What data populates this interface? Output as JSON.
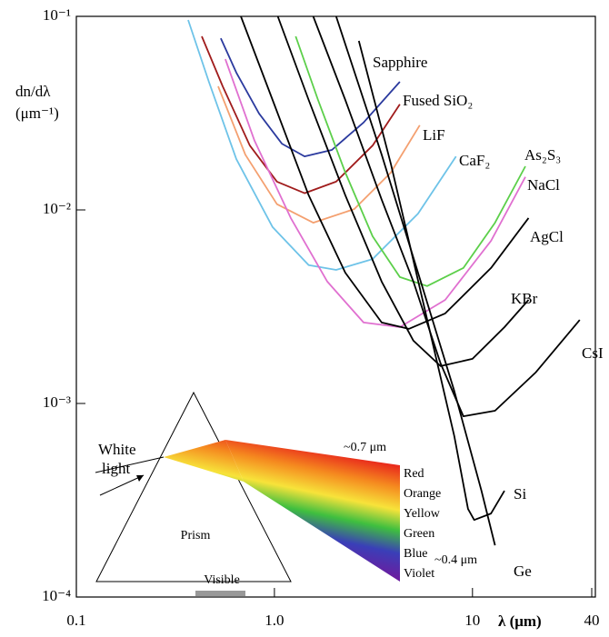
{
  "chart_data": {
    "type": "line",
    "y_label": [
      "dn/dλ",
      "(μm⁻¹)"
    ],
    "x_label": "λ (μm)",
    "log_x": true,
    "log_y": true,
    "xlim": [
      0.1,
      40
    ],
    "ylim": [
      0.0001,
      0.1
    ],
    "xticks": [
      0.1,
      {
        "value": 1,
        "label": "1.0"
      },
      10,
      40
    ],
    "yticks": [
      {
        "value": 0.1,
        "label": "10⁻¹"
      },
      {
        "value": 0.01,
        "label": "10⁻²"
      },
      {
        "value": 0.001,
        "label": "10⁻³"
      },
      {
        "value": 0.0001,
        "label": "10⁻⁴"
      }
    ],
    "series": [
      {
        "name": "Sapphire",
        "color": "#2b3a9e",
        "x": [
          0.536,
          0.642,
          0.836,
          1.09,
          1.42,
          1.95,
          2.82,
          4.3
        ],
        "values": [
          0.0771,
          0.0512,
          0.0315,
          0.022,
          0.0189,
          0.0204,
          0.0283,
          0.0459
        ]
      },
      {
        "name": "Fused SiO₂",
        "color": "#a01c1c",
        "x": [
          0.43,
          0.548,
          0.752,
          1.03,
          1.42,
          2.05,
          3.13,
          4.3
        ],
        "values": [
          0.0788,
          0.0435,
          0.0215,
          0.014,
          0.0122,
          0.014,
          0.0215,
          0.0351
        ]
      },
      {
        "name": "LiF",
        "color": "#f4a070",
        "x": [
          0.52,
          0.713,
          1.03,
          1.57,
          2.53,
          3.87,
          5.42
        ],
        "values": [
          0.0435,
          0.0193,
          0.0107,
          0.00859,
          0.0101,
          0.0156,
          0.0274
        ]
      },
      {
        "name": "CaF₂",
        "color": "#6ec3e8",
        "x": [
          0.367,
          0.467,
          0.642,
          0.979,
          1.49,
          2.05,
          3.13,
          5.31,
          8.26
        ],
        "values": [
          0.0958,
          0.0459,
          0.0183,
          0.00815,
          0.00518,
          0.0049,
          0.00557,
          0.00957,
          0.0189
        ]
      },
      {
        "name": "As₂S₃",
        "color": "#5ccf4a",
        "x": [
          1.28,
          1.66,
          2.28,
          3.13,
          4.3,
          5.9,
          9.0,
          13.0,
          18.5
        ],
        "values": [
          0.0788,
          0.037,
          0.0156,
          0.00731,
          0.0045,
          0.00404,
          0.00501,
          0.00859,
          0.0168
        ]
      },
      {
        "name": "NaCl",
        "color": "#e070d0",
        "x": [
          0.565,
          0.793,
          1.21,
          1.85,
          2.82,
          4.3,
          7.28,
          12.4,
          18.5
        ],
        "values": [
          0.0601,
          0.0228,
          0.00908,
          0.00426,
          0.00262,
          0.00248,
          0.00343,
          0.00692,
          0.0148
        ]
      },
      {
        "name": "AgCl",
        "color": "#000000",
        "x": [
          0.677,
          0.979,
          1.49,
          2.28,
          3.48,
          4.77,
          7.28,
          12.4,
          19.2
        ],
        "values": [
          0.1,
          0.037,
          0.0119,
          0.00474,
          0.00262,
          0.00243,
          0.00292,
          0.00501,
          0.00908
        ]
      },
      {
        "name": "KBr",
        "color": "#000000",
        "x": [
          1.04,
          1.49,
          2.28,
          3.48,
          5.03,
          6.9,
          10.0,
          14.5,
          19.2
        ],
        "values": [
          0.1,
          0.037,
          0.0119,
          0.00426,
          0.00211,
          0.00156,
          0.0017,
          0.00248,
          0.00343
        ]
      },
      {
        "name": "CsI",
        "color": "#000000",
        "x": [
          1.57,
          2.28,
          3.48,
          5.03,
          6.9,
          9.0,
          13.0,
          20.9,
          34.8
        ],
        "values": [
          0.1,
          0.037,
          0.0113,
          0.00426,
          0.00161,
          0.000859,
          0.000917,
          0.00145,
          0.0027
        ]
      },
      {
        "name": "Si",
        "color": "#000000",
        "x": [
          2.67,
          3.87,
          5.6,
          8.09,
          9.49,
          10.2,
          12.4,
          14.5
        ],
        "values": [
          0.0747,
          0.0173,
          0.00343,
          0.000678,
          0.000285,
          0.00025,
          0.00027,
          0.000354
        ]
      },
      {
        "name": "Ge",
        "color": "#000000",
        "x": [
          2.05,
          3.48,
          5.31,
          8.09,
          11.1,
          13.0
        ],
        "values": [
          0.1,
          0.0193,
          0.00474,
          0.00116,
          0.000354,
          0.000185
        ]
      }
    ],
    "inset": {
      "white_light": [
        "White",
        "light"
      ],
      "prism": "Prism",
      "visible": "Visible",
      "long_end": "~0.7 μm",
      "short_end": "~0.4 μm",
      "spectrum": [
        "Red",
        "Orange",
        "Yellow",
        "Green",
        "Blue",
        "Violet"
      ]
    }
  }
}
